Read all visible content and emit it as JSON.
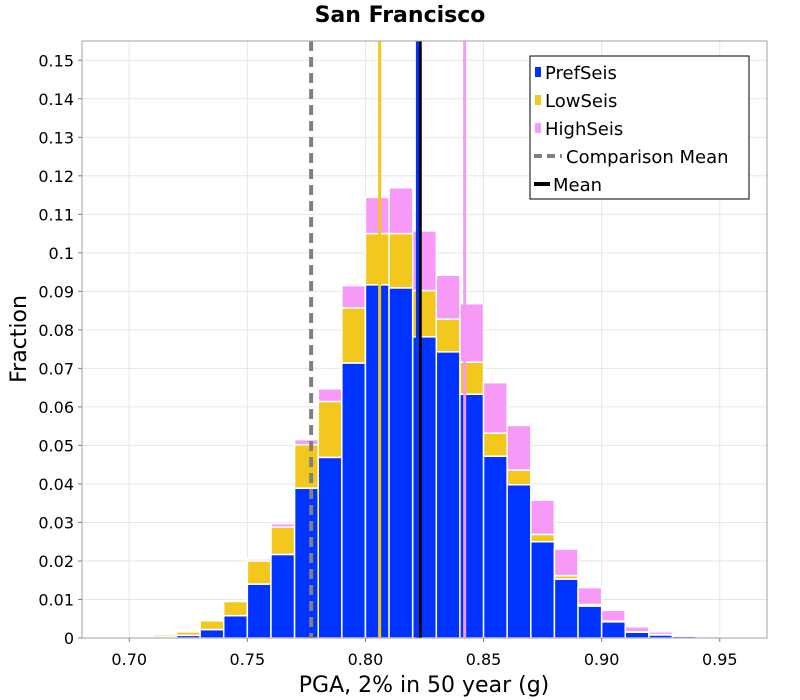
{
  "chart_data": {
    "type": "bar",
    "stacked": true,
    "title": "San Francisco",
    "xlabel": "PGA, 2% in 50 year (g)",
    "ylabel": "Fraction",
    "xlim": [
      0.68,
      0.97
    ],
    "ylim": [
      0,
      0.155
    ],
    "xticks": [
      "0.70",
      "0.75",
      "0.80",
      "0.85",
      "0.90",
      "0.95"
    ],
    "xtick_values": [
      0.7,
      0.75,
      0.8,
      0.85,
      0.9,
      0.95
    ],
    "yticks": [
      "0",
      "0.01",
      "0.02",
      "0.03",
      "0.04",
      "0.05",
      "0.06",
      "0.07",
      "0.08",
      "0.09",
      "0.1",
      "0.11",
      "0.12",
      "0.13",
      "0.14",
      "0.15"
    ],
    "ytick_values": [
      0,
      0.01,
      0.02,
      0.03,
      0.04,
      0.05,
      0.06,
      0.07,
      0.08,
      0.09,
      0.1,
      0.11,
      0.12,
      0.13,
      0.14,
      0.15
    ],
    "grid": true,
    "legend_position": "top-right",
    "bin_width": 0.01,
    "x": [
      0.695,
      0.705,
      0.715,
      0.725,
      0.735,
      0.745,
      0.755,
      0.765,
      0.775,
      0.785,
      0.795,
      0.805,
      0.815,
      0.825,
      0.835,
      0.845,
      0.855,
      0.865,
      0.875,
      0.885,
      0.895,
      0.905,
      0.915,
      0.925,
      0.935,
      0.945,
      0.955,
      0.965
    ],
    "series": [
      {
        "name": "PrefSeis",
        "color": "#0033ff",
        "values": [
          0,
          0,
          0.0003,
          0.0007,
          0.0022,
          0.0058,
          0.014,
          0.0217,
          0.0389,
          0.0469,
          0.0714,
          0.0917,
          0.0909,
          0.0782,
          0.0743,
          0.0633,
          0.0472,
          0.0398,
          0.025,
          0.0153,
          0.0083,
          0.0042,
          0.0015,
          0.0008,
          0.0005,
          0.0004,
          0,
          0
        ]
      },
      {
        "name": "LowSeis",
        "color": "#f2c81e",
        "values": [
          0,
          0.0002,
          0.0005,
          0.0009,
          0.0023,
          0.0037,
          0.006,
          0.0071,
          0.0113,
          0.0145,
          0.0143,
          0.0133,
          0.0141,
          0.012,
          0.0085,
          0.0083,
          0.006,
          0.0038,
          0.0019,
          0.0009,
          0.0004,
          0.0002,
          0.0001,
          0.0001,
          0,
          0,
          0,
          0
        ]
      },
      {
        "name": "HighSeis",
        "color": "#f799f7",
        "values": [
          0,
          0,
          0,
          0.0001,
          0.0002,
          0.0002,
          0.0005,
          0.0009,
          0.0013,
          0.0033,
          0.0058,
          0.0094,
          0.0119,
          0.0155,
          0.0114,
          0.0152,
          0.0131,
          0.0116,
          0.0089,
          0.0069,
          0.0044,
          0.0028,
          0.0013,
          0.0007,
          0.0003,
          0.0002,
          0.0002,
          0.0001
        ]
      }
    ],
    "lines": [
      {
        "name": "Comparison Mean",
        "x": 0.777,
        "color": "#808080",
        "style": "dashed"
      },
      {
        "name": "Mean",
        "x": 0.823,
        "color": "#000000",
        "style": "solid"
      },
      {
        "name": "",
        "x": 0.822,
        "color": "#0033ff",
        "style": "solid"
      },
      {
        "name": "",
        "x": 0.806,
        "color": "#f2c81e",
        "style": "solid"
      },
      {
        "name": "",
        "x": 0.842,
        "color": "#f799f7",
        "style": "solid"
      }
    ],
    "legend": [
      "PrefSeis",
      "LowSeis",
      "HighSeis",
      "Comparison Mean",
      "Mean"
    ]
  }
}
